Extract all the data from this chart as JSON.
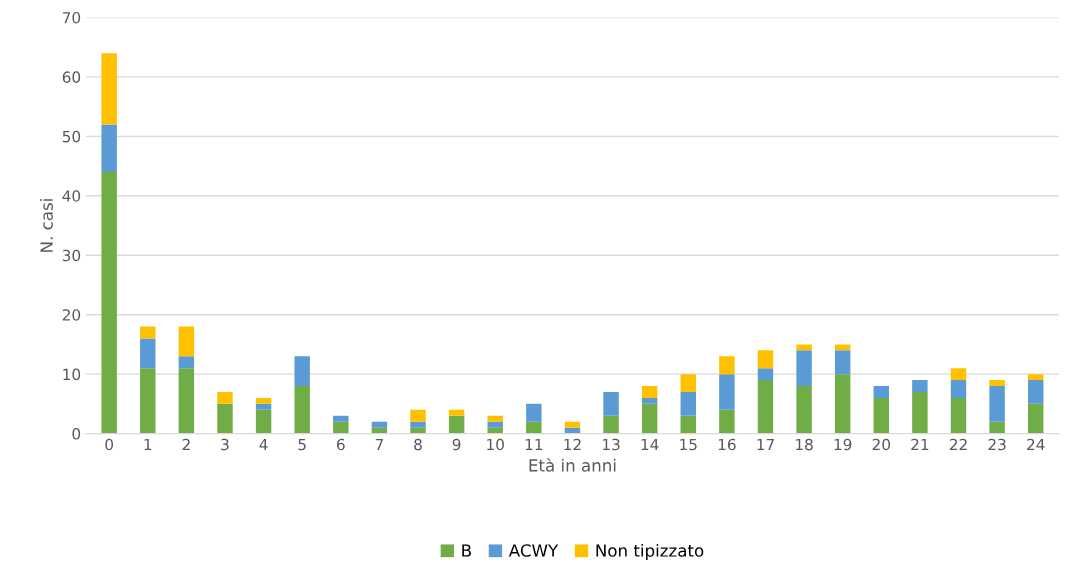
{
  "chart_data": {
    "type": "bar",
    "stacked": true,
    "xlabel": "Età in anni",
    "ylabel": "N. casi",
    "categories": [
      "0",
      "1",
      "2",
      "3",
      "4",
      "5",
      "6",
      "7",
      "8",
      "9",
      "10",
      "11",
      "12",
      "13",
      "14",
      "15",
      "16",
      "17",
      "18",
      "19",
      "20",
      "21",
      "22",
      "23",
      "24"
    ],
    "series": [
      {
        "name": "B",
        "color": "#70ad47",
        "values": [
          44,
          11,
          11,
          5,
          4,
          8,
          2,
          1,
          1,
          3,
          1,
          2,
          0,
          3,
          5,
          3,
          4,
          9,
          8,
          10,
          6,
          7,
          6,
          2,
          5
        ]
      },
      {
        "name": "ACWY",
        "color": "#5b9bd5",
        "values": [
          8,
          5,
          2,
          0,
          1,
          5,
          1,
          1,
          1,
          0,
          1,
          3,
          1,
          4,
          1,
          4,
          6,
          2,
          6,
          4,
          2,
          2,
          3,
          6,
          4
        ]
      },
      {
        "name": "Non tipizzato",
        "color": "#ffc000",
        "values": [
          12,
          2,
          5,
          2,
          1,
          0,
          0,
          0,
          2,
          1,
          1,
          0,
          1,
          0,
          2,
          3,
          3,
          3,
          1,
          1,
          0,
          0,
          2,
          1,
          1
        ]
      }
    ],
    "ylim": [
      0,
      70
    ],
    "yticks": [
      0,
      10,
      20,
      30,
      40,
      50,
      60,
      70
    ],
    "grid": "y",
    "legend": "bottom"
  }
}
